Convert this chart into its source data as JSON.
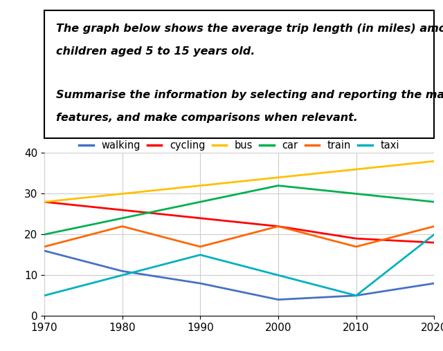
{
  "years": [
    1970,
    1980,
    1990,
    2000,
    2010,
    2020
  ],
  "series": {
    "walking": {
      "values": [
        16,
        11,
        8,
        4,
        5,
        8
      ],
      "color": "#4472C4"
    },
    "cycling": {
      "values": [
        28,
        26,
        24,
        22,
        19,
        18
      ],
      "color": "#FF0000"
    },
    "bus": {
      "values": [
        28,
        30,
        32,
        34,
        36,
        38
      ],
      "color": "#FFC000"
    },
    "car": {
      "values": [
        20,
        24,
        28,
        32,
        30,
        28
      ],
      "color": "#00B050"
    },
    "train": {
      "values": [
        17,
        22,
        17,
        22,
        17,
        22
      ],
      "color": "#FF6600"
    },
    "taxi": {
      "values": [
        5,
        10,
        15,
        10,
        5,
        20
      ],
      "color": "#00B0C0"
    }
  },
  "ylim": [
    0,
    40
  ],
  "yticks": [
    0,
    10,
    20,
    30,
    40
  ],
  "xticks": [
    1970,
    1980,
    1990,
    2000,
    2010,
    2020
  ],
  "title_lines": [
    "The graph below shows the average trip length (in miles) among U.S.",
    "children aged 5 to 15 years old.",
    "",
    "Summarise the information by selecting and reporting the main",
    "features, and make comparisons when relevant."
  ],
  "title_fontsize": 11.5,
  "legend_fontsize": 10.5,
  "tick_fontsize": 11,
  "line_width": 2.0,
  "background_color": "#FFFFFF",
  "grid_color": "#CCCCCC"
}
